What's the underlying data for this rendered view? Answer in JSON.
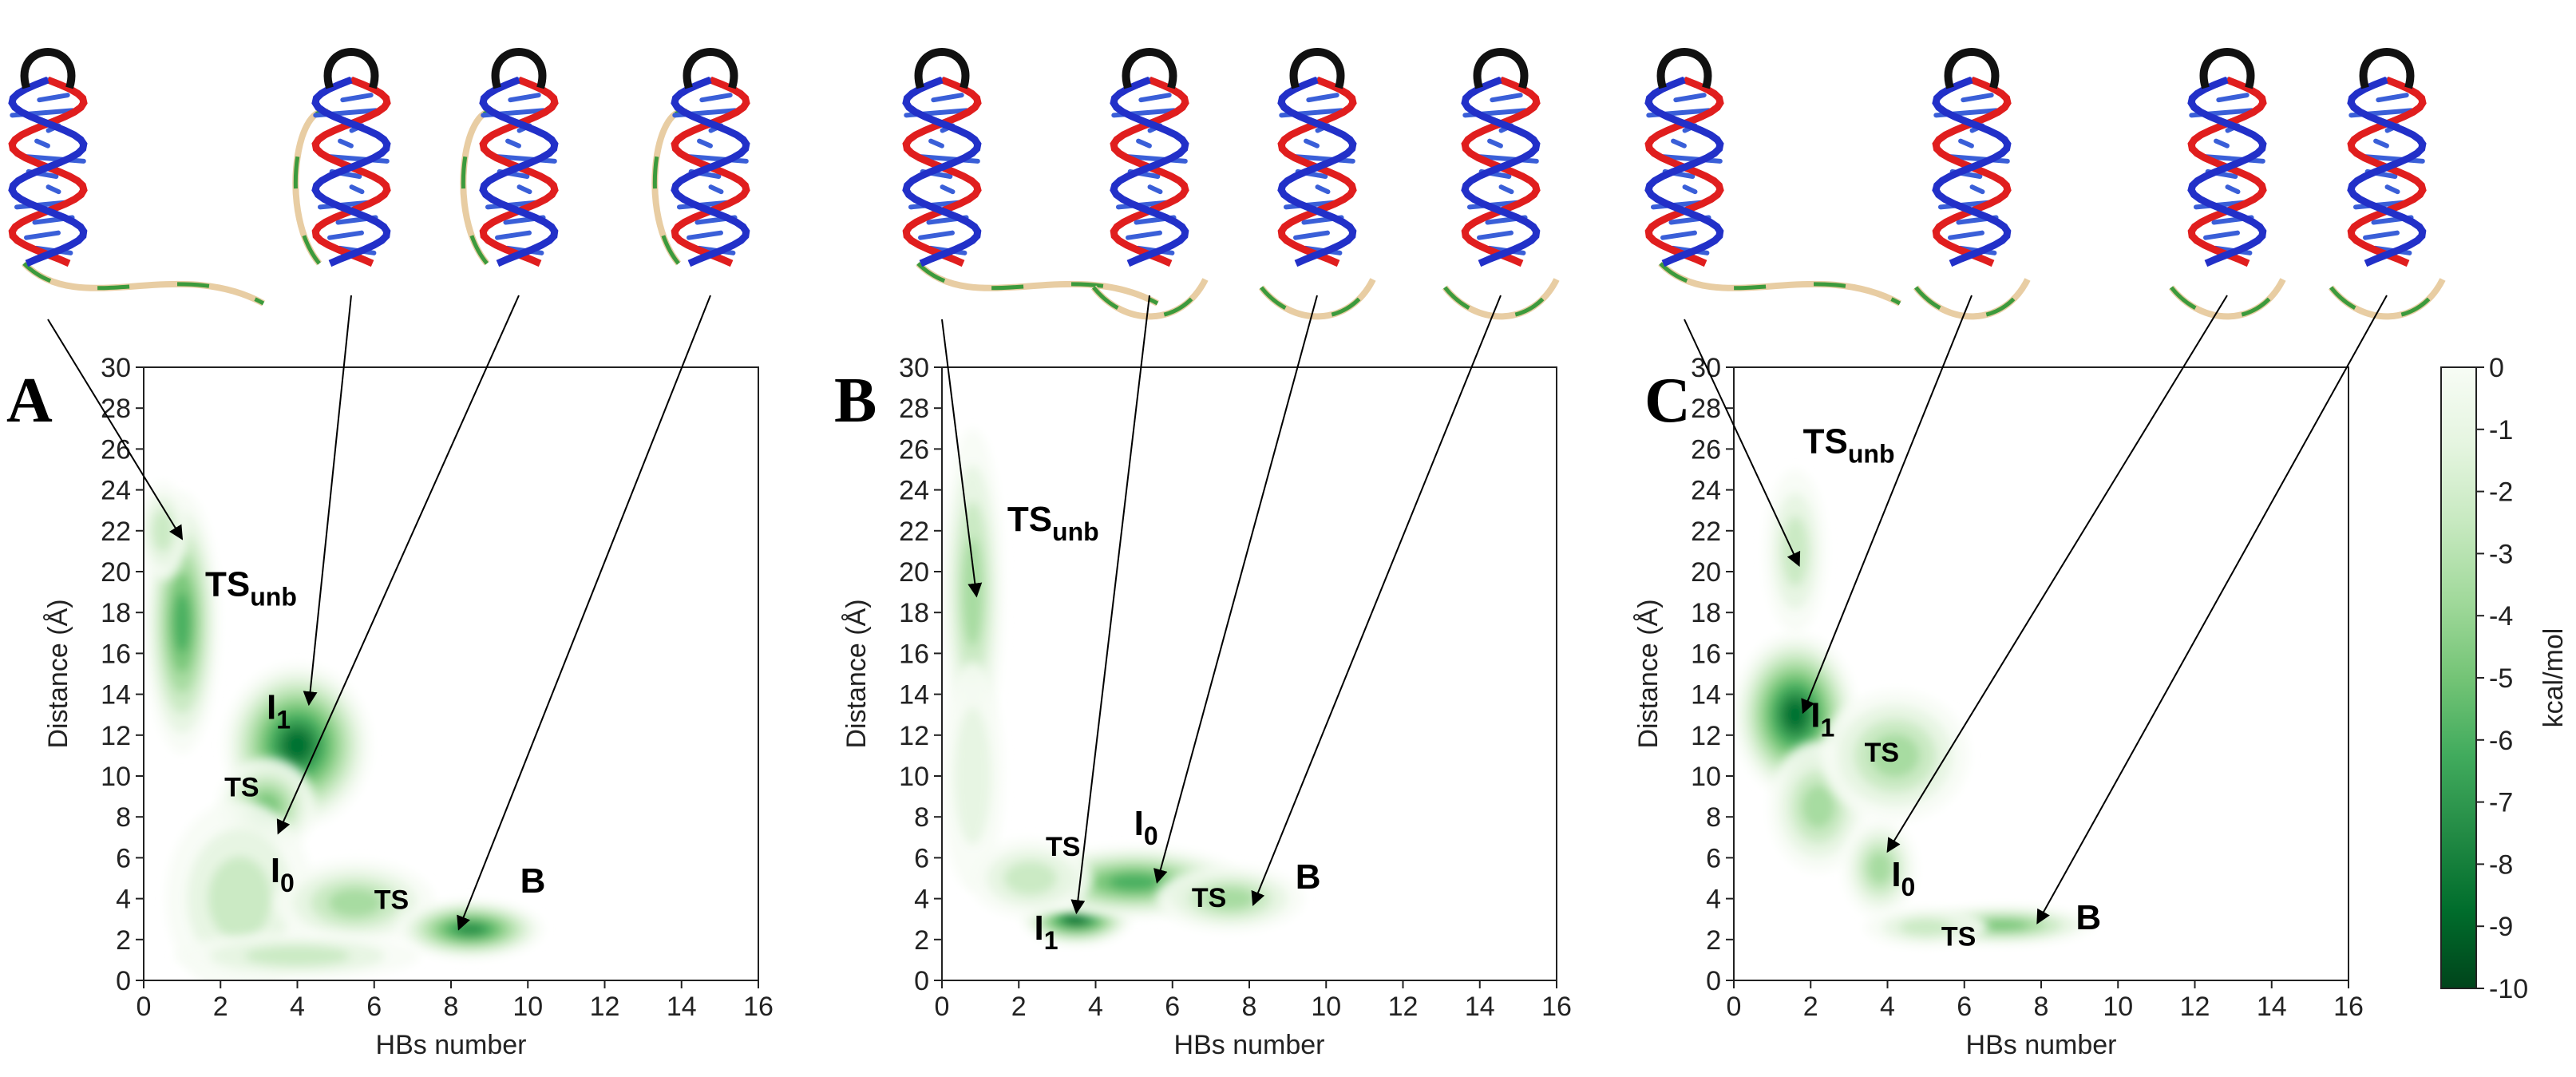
{
  "chart_data": [
    {
      "type": "heatmap",
      "panel_label": "A",
      "xlabel": "HBs number",
      "ylabel": "Distance (Å)",
      "xlim": [
        0,
        16
      ],
      "ylim": [
        0,
        30
      ],
      "xticks": [
        0,
        2,
        4,
        6,
        8,
        10,
        12,
        14,
        16
      ],
      "yticks": [
        0,
        2,
        4,
        6,
        8,
        10,
        12,
        14,
        16,
        18,
        20,
        22,
        24,
        26,
        28,
        30
      ],
      "grid": false,
      "basins": [
        {
          "x": 1.0,
          "y": 17.5,
          "sx": 0.6,
          "sy": 4.0,
          "depth": 6
        },
        {
          "x": 0.5,
          "y": 22.0,
          "sx": 0.4,
          "sy": 1.5,
          "depth": 3
        },
        {
          "x": 4.0,
          "y": 11.5,
          "sx": 1.2,
          "sy": 2.5,
          "depth": 8
        },
        {
          "x": 3.2,
          "y": 8.5,
          "sx": 0.8,
          "sy": 1.5,
          "depth": 5
        },
        {
          "x": 2.5,
          "y": 4.0,
          "sx": 1.2,
          "sy": 3.0,
          "depth": 3
        },
        {
          "x": 5.5,
          "y": 3.8,
          "sx": 1.3,
          "sy": 1.3,
          "depth": 4
        },
        {
          "x": 8.5,
          "y": 2.5,
          "sx": 1.2,
          "sy": 0.9,
          "depth": 7
        },
        {
          "x": 4.0,
          "y": 1.2,
          "sx": 2.0,
          "sy": 0.7,
          "depth": 3
        }
      ],
      "annotations": [
        {
          "main": "TS",
          "sub": "unb",
          "x": 1.6,
          "y": 18.8,
          "size": "large"
        },
        {
          "main": "I",
          "sub": "1",
          "x": 3.2,
          "y": 12.8,
          "size": "large"
        },
        {
          "main": "TS",
          "sub": "",
          "x": 2.1,
          "y": 9.0,
          "size": "small"
        },
        {
          "main": "I",
          "sub": "0",
          "x": 3.3,
          "y": 4.8,
          "size": "large"
        },
        {
          "main": "TS",
          "sub": "",
          "x": 6.0,
          "y": 3.5,
          "size": "small"
        },
        {
          "main": "B",
          "sub": "",
          "x": 9.8,
          "y": 4.3,
          "size": "large"
        }
      ],
      "arrow_targets": [
        [
          1.0,
          21.6
        ],
        [
          4.3,
          13.5
        ],
        [
          3.5,
          7.2
        ],
        [
          8.2,
          2.5
        ]
      ]
    },
    {
      "type": "heatmap",
      "panel_label": "B",
      "xlabel": "HBs number",
      "ylabel": "Distance (Å)",
      "xlim": [
        0,
        16
      ],
      "ylim": [
        0,
        30
      ],
      "xticks": [
        0,
        2,
        4,
        6,
        8,
        10,
        12,
        14,
        16
      ],
      "yticks": [
        0,
        2,
        4,
        6,
        8,
        10,
        12,
        14,
        16,
        18,
        20,
        22,
        24,
        26,
        28,
        30
      ],
      "grid": false,
      "basins": [
        {
          "x": 0.8,
          "y": 19.0,
          "sx": 0.5,
          "sy": 5.0,
          "depth": 4
        },
        {
          "x": 0.8,
          "y": 10.0,
          "sx": 0.5,
          "sy": 3.5,
          "depth": 2
        },
        {
          "x": 3.5,
          "y": 3.0,
          "sx": 0.9,
          "sy": 0.8,
          "depth": 8
        },
        {
          "x": 5.0,
          "y": 4.8,
          "sx": 1.8,
          "sy": 1.1,
          "depth": 6
        },
        {
          "x": 7.5,
          "y": 4.0,
          "sx": 1.2,
          "sy": 1.0,
          "depth": 4
        },
        {
          "x": 2.3,
          "y": 5.0,
          "sx": 1.0,
          "sy": 1.2,
          "depth": 3
        }
      ],
      "annotations": [
        {
          "main": "TS",
          "sub": "unb",
          "x": 1.7,
          "y": 22.0,
          "size": "large"
        },
        {
          "main": "TS",
          "sub": "",
          "x": 2.7,
          "y": 6.1,
          "size": "small"
        },
        {
          "main": "I",
          "sub": "0",
          "x": 5.0,
          "y": 7.1,
          "size": "large"
        },
        {
          "main": "TS",
          "sub": "",
          "x": 6.5,
          "y": 3.6,
          "size": "small"
        },
        {
          "main": "B",
          "sub": "",
          "x": 9.2,
          "y": 4.5,
          "size": "large"
        },
        {
          "main": "I",
          "sub": "1",
          "x": 2.4,
          "y": 2.0,
          "size": "large"
        }
      ],
      "arrow_targets": [
        [
          0.9,
          18.8
        ],
        [
          3.5,
          3.3
        ],
        [
          5.6,
          4.8
        ],
        [
          8.1,
          3.7
        ]
      ]
    },
    {
      "type": "heatmap",
      "panel_label": "C",
      "xlabel": "HBs number",
      "ylabel": "Distance (Å)",
      "xlim": [
        0,
        16
      ],
      "ylim": [
        0,
        30
      ],
      "xticks": [
        0,
        2,
        4,
        6,
        8,
        10,
        12,
        14,
        16
      ],
      "yticks": [
        0,
        2,
        4,
        6,
        8,
        10,
        12,
        14,
        16,
        18,
        20,
        22,
        24,
        26,
        28,
        30
      ],
      "grid": false,
      "basins": [
        {
          "x": 1.6,
          "y": 13.0,
          "sx": 1.0,
          "sy": 2.5,
          "depth": 8
        },
        {
          "x": 1.6,
          "y": 21.0,
          "sx": 0.5,
          "sy": 2.5,
          "depth": 3
        },
        {
          "x": 2.2,
          "y": 8.5,
          "sx": 0.8,
          "sy": 2.0,
          "depth": 4
        },
        {
          "x": 4.2,
          "y": 11.0,
          "sx": 1.2,
          "sy": 2.0,
          "depth": 4
        },
        {
          "x": 3.8,
          "y": 5.5,
          "sx": 0.6,
          "sy": 1.5,
          "depth": 4
        },
        {
          "x": 7.0,
          "y": 2.7,
          "sx": 1.5,
          "sy": 0.6,
          "depth": 5
        },
        {
          "x": 5.0,
          "y": 2.6,
          "sx": 1.0,
          "sy": 0.6,
          "depth": 3
        }
      ],
      "annotations": [
        {
          "main": "TS",
          "sub": "unb",
          "x": 1.8,
          "y": 25.8,
          "size": "large"
        },
        {
          "main": "I",
          "sub": "1",
          "x": 2.0,
          "y": 12.4,
          "size": "large"
        },
        {
          "main": "TS",
          "sub": "",
          "x": 3.4,
          "y": 10.7,
          "size": "small"
        },
        {
          "main": "I",
          "sub": "0",
          "x": 4.1,
          "y": 4.6,
          "size": "large"
        },
        {
          "main": "TS",
          "sub": "",
          "x": 5.4,
          "y": 1.7,
          "size": "small"
        },
        {
          "main": "B",
          "sub": "",
          "x": 8.9,
          "y": 2.5,
          "size": "large"
        }
      ],
      "arrow_targets": [
        [
          1.7,
          20.3
        ],
        [
          1.8,
          13.1
        ],
        [
          4.0,
          6.3
        ],
        [
          7.9,
          2.8
        ]
      ]
    }
  ],
  "colorbar": {
    "label": "kcal/mol",
    "min": -10,
    "max": 0,
    "ticks": [
      0,
      -1,
      -2,
      -3,
      -4,
      -5,
      -6,
      -7,
      -8,
      -9,
      -10
    ],
    "colors": [
      "#f7fcf5",
      "#e5f5e0",
      "#c7e9c0",
      "#a1d99b",
      "#74c476",
      "#41ab5d",
      "#238b45",
      "#006d2c",
      "#00441b"
    ]
  },
  "structures": {
    "strand_colors": {
      "loop": "#111111",
      "stem_a": "#e01e1e",
      "stem_b": "#2230c8",
      "tail": "#3c9a3c",
      "backbone": "#e8cda3",
      "bases": "#3a5fd8"
    }
  }
}
